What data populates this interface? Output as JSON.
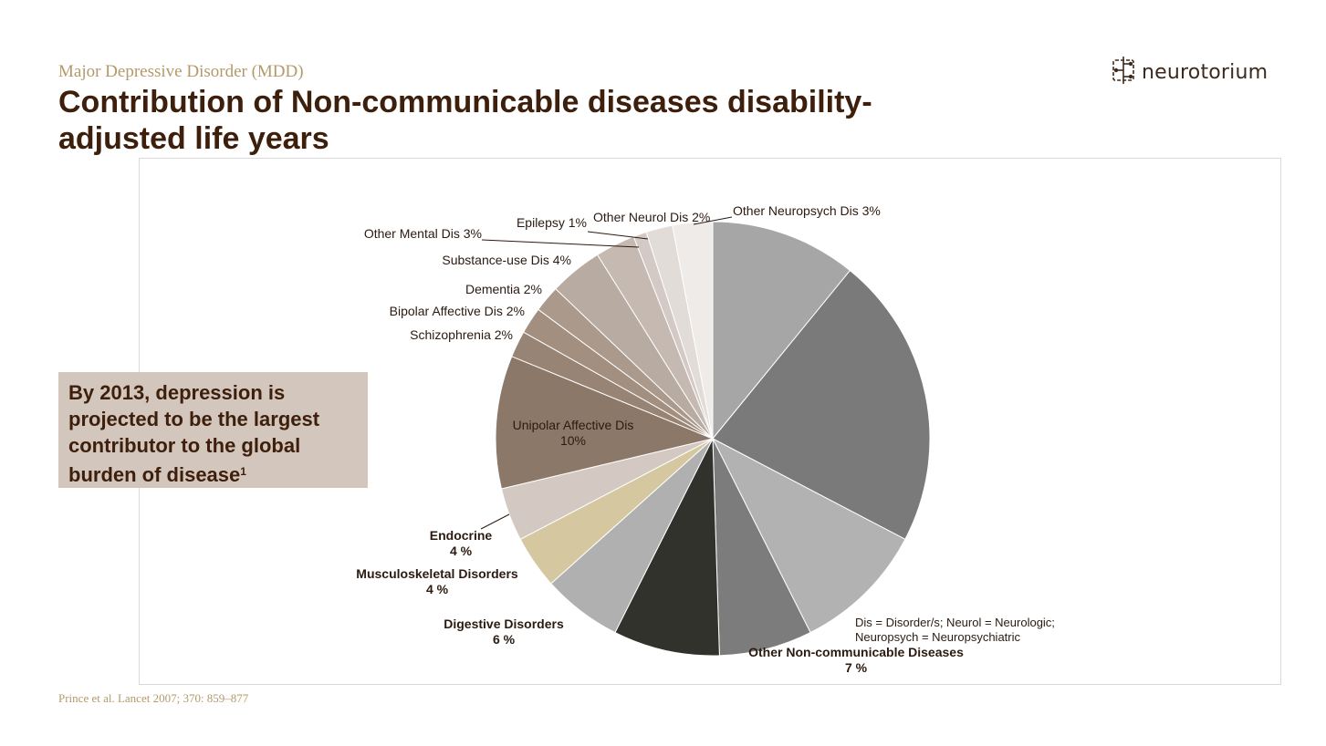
{
  "header": {
    "subtitle": "Major Depressive Disorder (MDD)",
    "title": "Contribution of Non-communicable diseases disability-adjusted life years"
  },
  "logo": {
    "text": "neurotorium",
    "icon": "neurotorium-logo-icon"
  },
  "callout": {
    "text": "By 2013, depression is projected to be the largest contributor to the global burden of disease",
    "superscript": "1"
  },
  "citation": "Prince et al. Lancet 2007; 370: 859–877",
  "colors": {
    "title": "#3d1f0c",
    "subtitle": "#b39a6a",
    "callout_bg": "#d3c6bd"
  },
  "chart_data": {
    "type": "pie",
    "title": "",
    "start_angle_deg": 0,
    "direction": "clockwise",
    "footnote": [
      "Dis = Disorder/s; Neurol = Neurologic;",
      "Neuropsych = Neuropsychiatric"
    ],
    "slices": [
      {
        "label": "",
        "value": 11,
        "color": "#a6a6a6",
        "labels": []
      },
      {
        "label": "",
        "value": 22,
        "color": "#7a7a7a",
        "labels": []
      },
      {
        "label": "",
        "value": 10,
        "color": "#b2b2b2",
        "labels": []
      },
      {
        "label": "Other Non-communicable Diseases",
        "value": 7,
        "color": "#7c7c7c",
        "labels": [
          "Other Non-communicable Diseases",
          "7 %"
        ],
        "bold": true
      },
      {
        "label": "",
        "value": 8,
        "color": "#32322d",
        "labels": []
      },
      {
        "label": "Digestive Disorders",
        "value": 6,
        "color": "#b0b0b0",
        "labels": [
          "Digestive Disorders",
          "6 %"
        ],
        "bold": true
      },
      {
        "label": "Musculoskeletal Disorders",
        "value": 4,
        "color": "#d5c8a0",
        "labels": [
          "Musculoskeletal Disorders",
          "4 %"
        ],
        "bold": true
      },
      {
        "label": "Endocrine",
        "value": 4,
        "color": "#d3c9c2",
        "labels": [
          "Endocrine",
          "4 %"
        ],
        "bold": true
      },
      {
        "label": "Unipolar Affective Dis",
        "value": 10,
        "color": "#8c7868",
        "labels": [
          "Unipolar Affective Dis",
          "10%"
        ],
        "inside": true
      },
      {
        "label": "Schizophrenia",
        "value": 2,
        "color": "#988474",
        "labels": [
          "Schizophrenia 2%"
        ]
      },
      {
        "label": "Bipolar Affective Dis",
        "value": 2,
        "color": "#a38f80",
        "labels": [
          "Bipolar Affective Dis 2%"
        ]
      },
      {
        "label": "Dementia",
        "value": 2,
        "color": "#ab998b",
        "labels": [
          "Dementia 2%"
        ]
      },
      {
        "label": "Substance-use Dis",
        "value": 4,
        "color": "#b8aba1",
        "labels": [
          "Substance-use Dis 4%"
        ]
      },
      {
        "label": "Other Mental Dis",
        "value": 3,
        "color": "#c5b9b1",
        "labels": [
          "Other Mental Dis 3%"
        ]
      },
      {
        "label": "Epilepsy",
        "value": 1,
        "color": "#d3cac5",
        "labels": [
          "Epilepsy 1%"
        ]
      },
      {
        "label": "Other Neurol Dis",
        "value": 2,
        "color": "#e1dcd8",
        "labels": [
          "Other Neurol Dis 2%"
        ]
      },
      {
        "label": "Other Neuropsych Dis",
        "value": 3,
        "color": "#eeebe8",
        "labels": [
          "Other Neuropsych Dis 3%"
        ]
      }
    ]
  }
}
